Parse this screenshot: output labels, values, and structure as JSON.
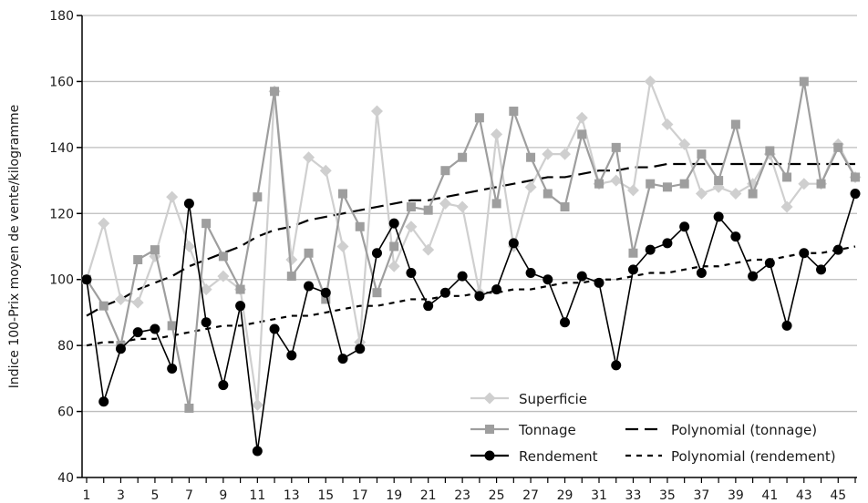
{
  "chart_data": {
    "type": "line",
    "title": "",
    "xlabel": "",
    "ylabel": "Indice 100-Prix moyen de vente/kilogramme",
    "ylim": [
      40,
      180
    ],
    "xlim": [
      1,
      46
    ],
    "yticks": [
      40,
      60,
      80,
      100,
      120,
      140,
      160,
      180
    ],
    "xtick_labels": [
      "1",
      "3",
      "5",
      "7",
      "9",
      "11",
      "13",
      "15",
      "17",
      "19",
      "21",
      "23",
      "25",
      "27",
      "29",
      "31",
      "33",
      "35",
      "37",
      "39",
      "41",
      "43",
      "45"
    ],
    "grid": "horizontal",
    "x": [
      1,
      2,
      3,
      4,
      5,
      6,
      7,
      8,
      9,
      10,
      11,
      12,
      13,
      14,
      15,
      16,
      17,
      18,
      19,
      20,
      21,
      22,
      23,
      24,
      25,
      26,
      27,
      28,
      29,
      30,
      31,
      32,
      33,
      34,
      35,
      36,
      37,
      38,
      39,
      40,
      41,
      42,
      43,
      44,
      45,
      46
    ],
    "series": [
      {
        "name": "Superficie",
        "color": "#cfcfcf",
        "marker": "diamond",
        "values": [
          100,
          117,
          94,
          93,
          107,
          125,
          110,
          97,
          101,
          97,
          62,
          157,
          106,
          137,
          133,
          110,
          81,
          151,
          104,
          116,
          109,
          123,
          122,
          96,
          144,
          110,
          128,
          138,
          138,
          149,
          129,
          130,
          127,
          160,
          147,
          141,
          126,
          128,
          126,
          129,
          138,
          122,
          129,
          129,
          141,
          131
        ]
      },
      {
        "name": "Tonnage",
        "color": "#9e9e9e",
        "marker": "square",
        "values": [
          100,
          92,
          80,
          106,
          109,
          86,
          61,
          117,
          107,
          97,
          125,
          157,
          101,
          108,
          94,
          126,
          116,
          96,
          110,
          122,
          121,
          133,
          137,
          149,
          123,
          151,
          137,
          126,
          122,
          144,
          129,
          140,
          108,
          129,
          128,
          129,
          138,
          130,
          147,
          126,
          139,
          131,
          160,
          129,
          140,
          131
        ]
      },
      {
        "name": "Rendement",
        "color": "#000000",
        "marker": "circle",
        "values": [
          100,
          63,
          79,
          84,
          85,
          73,
          123,
          87,
          68,
          92,
          48,
          85,
          77,
          98,
          96,
          76,
          79,
          108,
          117,
          102,
          92,
          96,
          101,
          95,
          97,
          111,
          102,
          100,
          87,
          101,
          99,
          74,
          103,
          109,
          111,
          116,
          102,
          119,
          113,
          101,
          105,
          86,
          108,
          103,
          109,
          126
        ]
      },
      {
        "name": "Polynomial (tonnage)",
        "color": "#000000",
        "dash": "long",
        "values": [
          89,
          92,
          94,
          97,
          99,
          101,
          104,
          106,
          108,
          110,
          113,
          115,
          116,
          118,
          119,
          120,
          121,
          122,
          123,
          124,
          124,
          125,
          126,
          127,
          128,
          129,
          130,
          131,
          131,
          132,
          133,
          133,
          134,
          134,
          135,
          135,
          135,
          135,
          135,
          135,
          135,
          135,
          135,
          135,
          135,
          135
        ]
      },
      {
        "name": "Polynomial (rendement)",
        "color": "#000000",
        "dash": "short",
        "values": [
          80,
          81,
          81,
          82,
          82,
          83,
          84,
          85,
          86,
          86,
          87,
          88,
          89,
          89,
          90,
          91,
          92,
          92,
          93,
          94,
          94,
          95,
          95,
          96,
          96,
          97,
          97,
          98,
          99,
          99,
          100,
          100,
          101,
          102,
          102,
          103,
          104,
          104,
          105,
          106,
          106,
          107,
          108,
          108,
          109,
          110
        ]
      }
    ],
    "legend": {
      "placement": "bottom-right",
      "entries": [
        "Superficie",
        "Tonnage",
        "Rendement",
        "Polynomial (tonnage)",
        "Polynomial (rendement)"
      ]
    }
  }
}
